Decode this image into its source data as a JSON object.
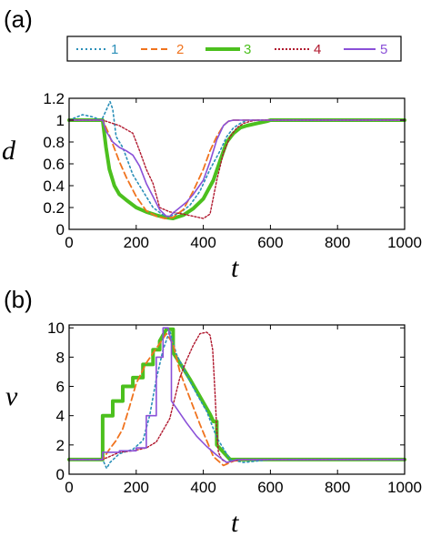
{
  "colors": {
    "s1": "#2a8fb8",
    "s2": "#f0731e",
    "s3": "#4cc01e",
    "s4": "#b0182e",
    "s5": "#8a50d8"
  },
  "legend": [
    "1",
    "2",
    "3",
    "4",
    "5"
  ],
  "chart_data": [
    {
      "type": "line",
      "panel_label": "(a)",
      "xlabel": "t",
      "ylabel": "d",
      "xlim": [
        0,
        1000
      ],
      "ylim": [
        0,
        1.2
      ],
      "xticks": [
        "0",
        "200",
        "400",
        "600",
        "800",
        "1000"
      ],
      "yticks": [
        "0",
        "0.2",
        "0.4",
        "0.6",
        "0.8",
        "1",
        "1.2"
      ],
      "series": [
        {
          "name": "1",
          "x": [
            0,
            40,
            70,
            95,
            100,
            112,
            122,
            130,
            140,
            160,
            190,
            220,
            250,
            285,
            300,
            330,
            360,
            390,
            420,
            450,
            470,
            490,
            510,
            530,
            560,
            600,
            1000
          ],
          "y": [
            1.0,
            1.05,
            1.03,
            1.0,
            1.02,
            1.1,
            1.17,
            1.1,
            0.85,
            0.75,
            0.5,
            0.35,
            0.2,
            0.12,
            0.12,
            0.15,
            0.22,
            0.35,
            0.55,
            0.72,
            0.85,
            0.93,
            0.97,
            1.0,
            1.0,
            1.0,
            1.0
          ]
        },
        {
          "name": "2",
          "x": [
            0,
            100,
            115,
            130,
            150,
            170,
            200,
            230,
            260,
            285,
            310,
            340,
            370,
            400,
            420,
            440,
            460,
            475,
            490,
            500,
            520,
            1000
          ],
          "y": [
            1.0,
            1.0,
            0.9,
            0.78,
            0.62,
            0.48,
            0.3,
            0.17,
            0.12,
            0.1,
            0.11,
            0.18,
            0.35,
            0.55,
            0.72,
            0.85,
            0.95,
            0.99,
            1.0,
            1.0,
            1.0,
            1.0
          ]
        },
        {
          "name": "3",
          "x": [
            0,
            100,
            110,
            120,
            135,
            150,
            170,
            200,
            230,
            260,
            285,
            310,
            340,
            370,
            400,
            430,
            450,
            470,
            490,
            510,
            530,
            560,
            590,
            600,
            1000
          ],
          "y": [
            1.0,
            1.0,
            0.75,
            0.55,
            0.4,
            0.32,
            0.27,
            0.2,
            0.16,
            0.13,
            0.11,
            0.1,
            0.13,
            0.19,
            0.28,
            0.45,
            0.63,
            0.8,
            0.88,
            0.93,
            0.95,
            0.97,
            0.99,
            1.0,
            1.0
          ]
        },
        {
          "name": "4",
          "x": [
            0,
            100,
            150,
            190,
            210,
            230,
            250,
            270,
            300,
            340,
            370,
            400,
            420,
            440,
            460,
            480,
            500,
            520,
            540,
            560,
            1000
          ],
          "y": [
            1.0,
            1.0,
            0.95,
            0.88,
            0.72,
            0.55,
            0.42,
            0.2,
            0.16,
            0.14,
            0.12,
            0.1,
            0.14,
            0.45,
            0.7,
            0.85,
            0.93,
            0.97,
            0.99,
            1.0,
            1.0
          ]
        },
        {
          "name": "5",
          "x": [
            0,
            100,
            110,
            130,
            150,
            170,
            190,
            210,
            230,
            250,
            270,
            290,
            300,
            310,
            330,
            350,
            370,
            400,
            420,
            440,
            460,
            475,
            490,
            500,
            1000
          ],
          "y": [
            1.0,
            1.0,
            0.9,
            0.8,
            0.75,
            0.72,
            0.68,
            0.58,
            0.42,
            0.3,
            0.18,
            0.12,
            0.12,
            0.15,
            0.2,
            0.25,
            0.32,
            0.45,
            0.62,
            0.82,
            0.95,
            0.99,
            1.0,
            1.0,
            1.0
          ]
        }
      ]
    },
    {
      "type": "line",
      "panel_label": "(b)",
      "xlabel": "t",
      "ylabel": "v",
      "xlim": [
        0,
        1000
      ],
      "ylim": [
        0,
        10.2
      ],
      "xticks": [
        "0",
        "200",
        "400",
        "600",
        "800",
        "1000"
      ],
      "yticks": [
        "0",
        "2",
        "4",
        "6",
        "8",
        "10"
      ],
      "series": [
        {
          "name": "1",
          "x": [
            0,
            100,
            112,
            122,
            150,
            190,
            220,
            240,
            260,
            280,
            300,
            320,
            350,
            380,
            410,
            440,
            480,
            520,
            600,
            1000
          ],
          "y": [
            1.0,
            1.0,
            0.4,
            0.8,
            1.4,
            1.7,
            2.3,
            4.0,
            6.5,
            8.5,
            9.8,
            8.2,
            6.8,
            5.5,
            4.3,
            2.5,
            1.0,
            0.8,
            1.0,
            1.0
          ]
        },
        {
          "name": "2",
          "x": [
            0,
            100,
            120,
            140,
            160,
            180,
            200,
            230,
            260,
            290,
            310,
            330,
            360,
            390,
            410,
            430,
            460,
            490,
            520,
            1000
          ],
          "y": [
            1.0,
            1.0,
            1.7,
            2.3,
            3.1,
            4.6,
            6.2,
            7.6,
            8.6,
            9.6,
            8.9,
            7.0,
            5.2,
            3.4,
            2.3,
            1.2,
            0.6,
            0.9,
            1.0,
            1.0
          ]
        },
        {
          "name": "3",
          "x": [
            0,
            100,
            100,
            130,
            130,
            160,
            160,
            190,
            190,
            220,
            220,
            250,
            250,
            270,
            270,
            290,
            310,
            310,
            330,
            360,
            390,
            420,
            430,
            440,
            440,
            460,
            480,
            500,
            1000
          ],
          "y": [
            1.0,
            1.0,
            4.0,
            4.0,
            5.0,
            5.0,
            6.0,
            6.0,
            6.6,
            6.6,
            7.5,
            7.5,
            8.5,
            8.5,
            9.1,
            9.9,
            9.9,
            8.3,
            7.6,
            6.5,
            5.3,
            4.1,
            3.6,
            3.6,
            2.0,
            1.5,
            1.0,
            1.0,
            1.0
          ]
        },
        {
          "name": "4",
          "x": [
            0,
            100,
            120,
            150,
            190,
            230,
            260,
            280,
            300,
            330,
            350,
            370,
            390,
            410,
            420,
            428,
            435,
            440,
            445,
            455,
            470,
            490,
            510,
            530,
            1000
          ],
          "y": [
            1.0,
            1.0,
            1.2,
            1.5,
            1.6,
            1.8,
            2.2,
            3.0,
            3.8,
            6.6,
            7.8,
            8.8,
            9.6,
            9.7,
            9.5,
            8.5,
            5.5,
            3.0,
            1.5,
            1.0,
            0.8,
            0.9,
            1.0,
            1.0,
            1.0
          ]
        },
        {
          "name": "5",
          "x": [
            0,
            100,
            100,
            150,
            150,
            200,
            200,
            230,
            230,
            260,
            260,
            280,
            280,
            295,
            300,
            305,
            305,
            320,
            350,
            380,
            410,
            440,
            470,
            500,
            1000
          ],
          "y": [
            1.0,
            1.0,
            1.5,
            1.5,
            1.6,
            1.6,
            1.8,
            1.8,
            4.0,
            4.0,
            8.0,
            8.0,
            10.0,
            10.0,
            9.5,
            9.0,
            5.0,
            4.5,
            3.5,
            2.6,
            1.9,
            1.3,
            0.8,
            1.0,
            1.0
          ]
        }
      ]
    }
  ]
}
